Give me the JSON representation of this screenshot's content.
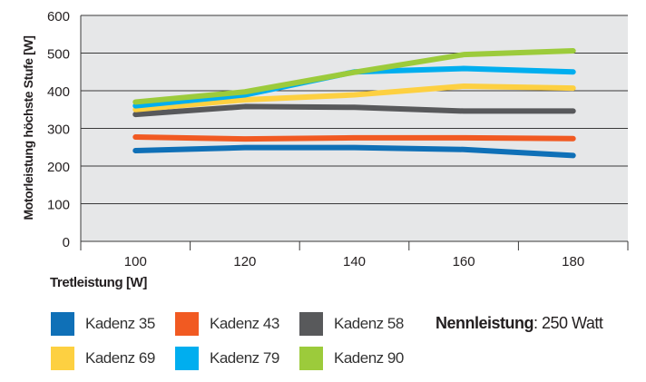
{
  "chart_data": {
    "type": "line",
    "xlabel": "Tretleistung [W]",
    "ylabel": "Motorleistung höchste Stufe [W]",
    "categories": [
      "100",
      "120",
      "140",
      "160",
      "180"
    ],
    "ylim": [
      0,
      600
    ],
    "yticks": [
      "0",
      "100",
      "200",
      "300",
      "400",
      "500",
      "600"
    ],
    "grid": true,
    "legend_position": "bottom",
    "series": [
      {
        "name": "Kadenz 35",
        "color": "#0f70b7",
        "values": [
          241,
          249,
          249,
          244,
          228
        ]
      },
      {
        "name": "Kadenz 43",
        "color": "#f15a22",
        "values": [
          277,
          272,
          275,
          275,
          273
        ]
      },
      {
        "name": "Kadenz 58",
        "color": "#58595b",
        "values": [
          337,
          358,
          356,
          346,
          346
        ]
      },
      {
        "name": "Kadenz 69",
        "color": "#fdd041",
        "values": [
          350,
          376,
          389,
          412,
          407
        ]
      },
      {
        "name": "Kadenz 79",
        "color": "#00aeef",
        "values": [
          360,
          389,
          450,
          459,
          450
        ]
      },
      {
        "name": "Kadenz 90",
        "color": "#9ccb3b",
        "values": [
          370,
          397,
          449,
          496,
          506
        ]
      }
    ]
  },
  "note": {
    "label": "Nennleistung",
    "value": ": 250 Watt"
  }
}
